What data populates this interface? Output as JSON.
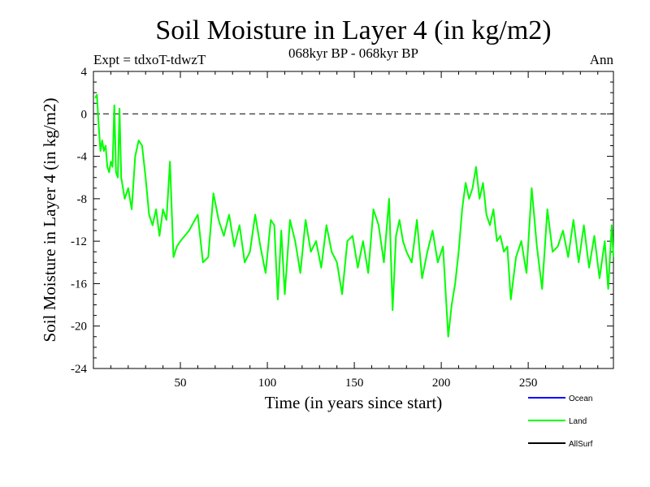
{
  "chart_data": {
    "type": "line",
    "title": "Soil Moisture in Layer 4 (in kg/m2)",
    "subtitle_left": "Expt = tdxoT-tdwzT",
    "subtitle_center": "068kyr BP - 068kyr BP",
    "subtitle_right": "Ann",
    "xlabel": "Time (in years since start)",
    "ylabel": "Soil Moisture in Layer 4 (in kg/m2)",
    "xlim": [
      0,
      299
    ],
    "ylim": [
      -24,
      4
    ],
    "xticks": [
      50,
      100,
      150,
      200,
      250
    ],
    "yticks": [
      4,
      0,
      -4,
      -8,
      -12,
      -16,
      -20,
      -24
    ],
    "reference_line": {
      "y": 0,
      "style": "dashed",
      "color": "#000000"
    },
    "legend_position": "bottom-right, below plot",
    "series": [
      {
        "name": "Ocean",
        "color": "#0000ff",
        "values": []
      },
      {
        "name": "Land",
        "color": "#00ff00",
        "x": [
          1,
          2,
          3,
          4,
          5,
          6,
          7,
          8,
          9,
          10,
          11,
          12,
          13,
          14,
          15,
          16,
          18,
          20,
          22,
          24,
          26,
          28,
          30,
          32,
          34,
          36,
          38,
          40,
          42,
          44,
          46,
          48,
          50,
          55,
          60,
          63,
          66,
          69,
          72,
          75,
          78,
          81,
          84,
          87,
          90,
          93,
          96,
          99,
          102,
          104,
          106,
          108,
          110,
          113,
          116,
          119,
          122,
          125,
          128,
          131,
          134,
          137,
          140,
          143,
          146,
          149,
          152,
          155,
          158,
          161,
          164,
          167,
          170,
          172,
          174,
          176,
          178,
          180,
          183,
          186,
          189,
          192,
          195,
          198,
          201,
          204,
          206,
          208,
          210,
          212,
          214,
          216,
          218,
          220,
          222,
          224,
          226,
          228,
          230,
          232,
          234,
          236,
          238,
          240,
          243,
          246,
          249,
          252,
          255,
          258,
          261,
          264,
          267,
          270,
          273,
          276,
          279,
          282,
          285,
          288,
          291,
          294,
          296,
          298,
          299
        ],
        "values": [
          1.5,
          1.8,
          -1,
          -3.5,
          -2.5,
          -3.5,
          -3,
          -5,
          -5.5,
          -4.5,
          -5,
          0.8,
          -5.5,
          -6,
          0.5,
          -6,
          -8,
          -7,
          -9,
          -4,
          -2.5,
          -3,
          -6,
          -9.5,
          -10.5,
          -9,
          -11.5,
          -9,
          -10,
          -4.5,
          -13.5,
          -12.5,
          -12,
          -11,
          -9.5,
          -14,
          -13.5,
          -7.5,
          -10,
          -11.5,
          -9.5,
          -12.5,
          -10.5,
          -14,
          -13,
          -9.5,
          -12.5,
          -15,
          -10,
          -10.5,
          -17.5,
          -11,
          -17,
          -10,
          -12,
          -15,
          -10,
          -13,
          -12,
          -14.5,
          -10.5,
          -13,
          -14,
          -17,
          -12,
          -11.5,
          -14.5,
          -12,
          -15,
          -9,
          -10.5,
          -14,
          -8,
          -18.5,
          -11.5,
          -10,
          -12,
          -13,
          -14,
          -10,
          -15.5,
          -13,
          -11,
          -14,
          -12.5,
          -21,
          -18,
          -16,
          -13,
          -9,
          -6.5,
          -8,
          -7,
          -5,
          -8,
          -6.5,
          -9.5,
          -10.5,
          -9,
          -12,
          -11.5,
          -13,
          -12.5,
          -17.5,
          -13.5,
          -12,
          -15,
          -7,
          -12.5,
          -16.5,
          -9,
          -13,
          -12.5,
          -11,
          -13.5,
          -10,
          -14,
          -10.5,
          -14.5,
          -11.5,
          -15.5,
          -12,
          -16.5,
          -10.5,
          -13.5
        ]
      },
      {
        "name": "AllSurf",
        "color": "#000000",
        "values": []
      }
    ]
  }
}
